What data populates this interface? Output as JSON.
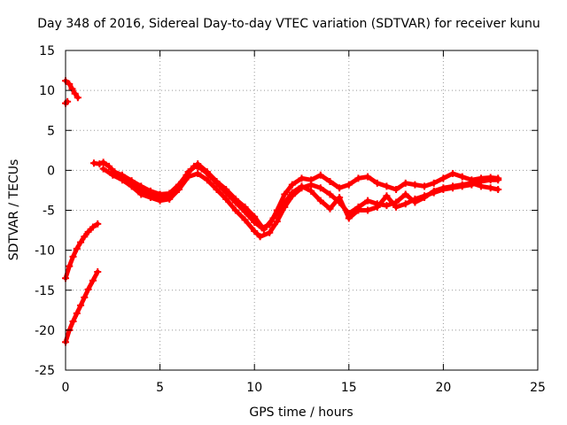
{
  "chart_data": {
    "type": "scatter",
    "title": "Day 348 of 2016, Sidereal Day-to-day VTEC variation (SDTVAR) for receiver kunu",
    "xlabel": "GPS time / hours",
    "ylabel": "SDTVAR / TECUs",
    "xlim": [
      0,
      25
    ],
    "ylim": [
      -25,
      15
    ],
    "xticks": [
      0,
      5,
      10,
      15,
      20,
      25
    ],
    "yticks": [
      -25,
      -20,
      -15,
      -10,
      -5,
      0,
      5,
      10,
      15
    ],
    "grid": true,
    "marker_color": "#ff0000",
    "series": [
      {
        "name": "arc-early-high",
        "points": [
          [
            0.0,
            11.2
          ],
          [
            0.2,
            10.8
          ],
          [
            0.35,
            10.2
          ],
          [
            0.5,
            9.6
          ],
          [
            0.65,
            9.1
          ]
        ]
      },
      {
        "name": "arc-early-dot",
        "points": [
          [
            0.0,
            8.4
          ],
          [
            0.1,
            8.6
          ]
        ]
      },
      {
        "name": "arc-rise-mid",
        "points": [
          [
            0.0,
            -13.5
          ],
          [
            0.2,
            -12.0
          ],
          [
            0.4,
            -10.8
          ],
          [
            0.6,
            -9.8
          ],
          [
            0.8,
            -9.0
          ],
          [
            1.0,
            -8.3
          ],
          [
            1.2,
            -7.7
          ],
          [
            1.45,
            -7.1
          ],
          [
            1.7,
            -6.7
          ]
        ]
      },
      {
        "name": "arc-rise-low",
        "points": [
          [
            0.0,
            -21.5
          ],
          [
            0.2,
            -20.0
          ],
          [
            0.4,
            -18.9
          ],
          [
            0.6,
            -17.9
          ],
          [
            0.8,
            -16.9
          ],
          [
            1.0,
            -15.9
          ],
          [
            1.2,
            -14.9
          ],
          [
            1.45,
            -13.8
          ],
          [
            1.7,
            -12.7
          ]
        ]
      },
      {
        "name": "band-main-a",
        "points": [
          [
            1.5,
            0.9
          ],
          [
            1.8,
            0.8
          ],
          [
            2.0,
            1.0
          ],
          [
            2.3,
            0.5
          ],
          [
            2.6,
            -0.2
          ],
          [
            3.0,
            -0.6
          ],
          [
            3.5,
            -1.3
          ],
          [
            4.0,
            -2.0
          ],
          [
            4.5,
            -2.6
          ],
          [
            5.0,
            -3.0
          ],
          [
            5.5,
            -2.9
          ],
          [
            6.0,
            -1.8
          ],
          [
            6.4,
            -0.6
          ],
          [
            6.8,
            0.5
          ],
          [
            7.2,
            0.2
          ],
          [
            7.6,
            -0.6
          ],
          [
            8.0,
            -1.6
          ],
          [
            8.5,
            -2.8
          ],
          [
            9.0,
            -4.0
          ],
          [
            9.5,
            -5.2
          ],
          [
            10.0,
            -6.5
          ],
          [
            10.4,
            -7.2
          ],
          [
            10.8,
            -6.8
          ],
          [
            11.2,
            -5.0
          ],
          [
            11.6,
            -3.0
          ],
          [
            12.0,
            -1.8
          ],
          [
            12.5,
            -1.0
          ],
          [
            13.0,
            -1.2
          ],
          [
            13.5,
            -0.6
          ],
          [
            14.0,
            -1.4
          ],
          [
            14.5,
            -2.2
          ],
          [
            15.0,
            -1.8
          ],
          [
            15.5,
            -1.0
          ],
          [
            16.0,
            -0.8
          ],
          [
            16.5,
            -1.6
          ],
          [
            17.0,
            -2.0
          ],
          [
            17.5,
            -2.4
          ],
          [
            18.0,
            -1.6
          ],
          [
            18.5,
            -1.8
          ],
          [
            19.0,
            -2.0
          ],
          [
            19.5,
            -1.6
          ],
          [
            20.0,
            -1.0
          ],
          [
            20.5,
            -0.4
          ],
          [
            21.0,
            -0.8
          ],
          [
            21.5,
            -1.2
          ],
          [
            22.0,
            -1.0
          ],
          [
            22.5,
            -0.9
          ],
          [
            22.9,
            -1.0
          ]
        ]
      },
      {
        "name": "band-main-b",
        "points": [
          [
            2.0,
            0.2
          ],
          [
            2.5,
            -0.6
          ],
          [
            3.0,
            -1.2
          ],
          [
            3.5,
            -2.0
          ],
          [
            4.0,
            -3.0
          ],
          [
            4.5,
            -3.4
          ],
          [
            5.0,
            -3.8
          ],
          [
            5.5,
            -3.6
          ],
          [
            6.0,
            -2.4
          ],
          [
            6.5,
            -0.8
          ],
          [
            7.0,
            -0.4
          ],
          [
            7.5,
            -1.2
          ],
          [
            8.0,
            -2.4
          ],
          [
            8.5,
            -3.6
          ],
          [
            9.0,
            -5.0
          ],
          [
            9.5,
            -6.2
          ],
          [
            10.0,
            -7.6
          ],
          [
            10.3,
            -8.3
          ],
          [
            10.8,
            -7.8
          ],
          [
            11.2,
            -6.4
          ],
          [
            11.6,
            -4.6
          ],
          [
            12.0,
            -3.2
          ],
          [
            12.5,
            -2.2
          ],
          [
            13.0,
            -1.8
          ],
          [
            13.5,
            -2.2
          ],
          [
            14.0,
            -3.0
          ],
          [
            14.5,
            -4.0
          ],
          [
            15.0,
            -5.4
          ],
          [
            15.5,
            -4.6
          ],
          [
            16.0,
            -3.8
          ],
          [
            16.5,
            -4.2
          ],
          [
            17.0,
            -4.4
          ],
          [
            17.5,
            -4.0
          ],
          [
            18.0,
            -3.0
          ],
          [
            18.5,
            -4.0
          ],
          [
            19.0,
            -3.4
          ],
          [
            19.5,
            -2.6
          ],
          [
            20.0,
            -2.2
          ],
          [
            20.5,
            -2.0
          ],
          [
            21.0,
            -1.8
          ],
          [
            21.5,
            -1.6
          ],
          [
            22.0,
            -2.0
          ],
          [
            22.5,
            -2.2
          ],
          [
            22.9,
            -2.4
          ]
        ]
      },
      {
        "name": "band-main-c",
        "points": [
          [
            3.0,
            -0.8
          ],
          [
            3.5,
            -1.6
          ],
          [
            4.0,
            -2.4
          ],
          [
            4.5,
            -3.0
          ],
          [
            5.0,
            -3.4
          ],
          [
            5.5,
            -3.2
          ],
          [
            6.0,
            -2.0
          ],
          [
            6.5,
            -0.2
          ],
          [
            7.0,
            0.8
          ],
          [
            7.5,
            -0.2
          ],
          [
            8.0,
            -1.4
          ],
          [
            8.5,
            -2.4
          ],
          [
            9.0,
            -3.6
          ],
          [
            9.5,
            -4.6
          ],
          [
            10.0,
            -5.8
          ],
          [
            10.5,
            -7.4
          ],
          [
            11.0,
            -6.0
          ],
          [
            11.5,
            -4.4
          ],
          [
            12.0,
            -2.8
          ],
          [
            12.5,
            -2.0
          ],
          [
            13.0,
            -2.6
          ],
          [
            13.5,
            -3.8
          ],
          [
            14.0,
            -4.8
          ],
          [
            14.5,
            -3.4
          ],
          [
            15.0,
            -6.0
          ],
          [
            15.5,
            -5.0
          ],
          [
            16.0,
            -5.0
          ],
          [
            16.5,
            -4.6
          ],
          [
            17.0,
            -3.2
          ],
          [
            17.5,
            -4.6
          ],
          [
            18.0,
            -4.2
          ],
          [
            18.5,
            -3.6
          ],
          [
            19.0,
            -3.2
          ],
          [
            19.5,
            -2.8
          ],
          [
            20.0,
            -2.4
          ],
          [
            20.5,
            -2.2
          ],
          [
            21.0,
            -2.0
          ],
          [
            21.5,
            -1.8
          ],
          [
            22.0,
            -1.4
          ],
          [
            22.5,
            -1.2
          ],
          [
            22.9,
            -1.2
          ]
        ]
      }
    ]
  }
}
